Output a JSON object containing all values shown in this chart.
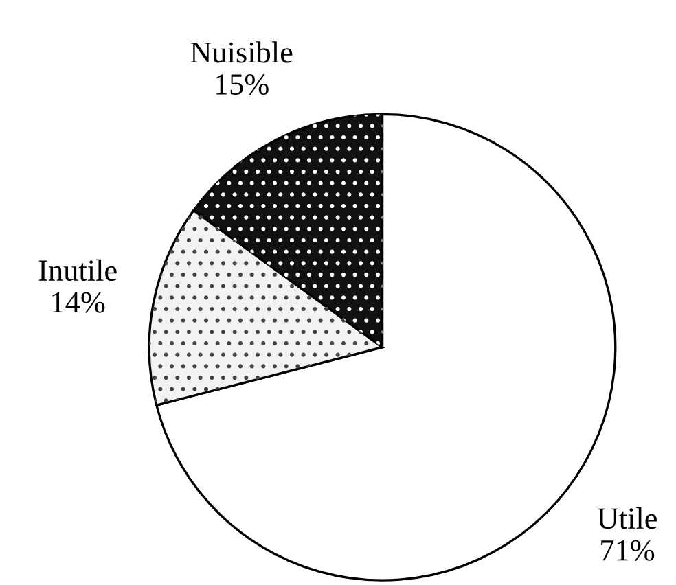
{
  "chart_data": {
    "type": "pie",
    "categories": [
      "Utile",
      "Inutile",
      "Nuisible"
    ],
    "values": [
      71,
      14,
      15
    ],
    "value_labels": [
      "71%",
      "14%",
      "15%"
    ],
    "colors": [
      "#ffffff",
      "#f2f2f2",
      "#111111"
    ]
  }
}
